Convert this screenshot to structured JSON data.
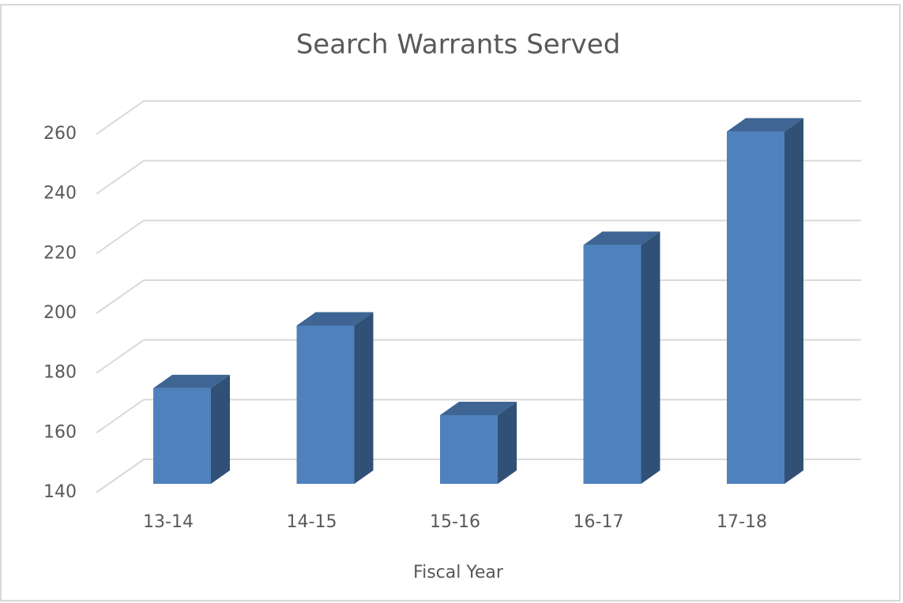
{
  "chart_data": {
    "type": "bar3d",
    "title": "Search Warrants Served",
    "x_label": "Fiscal Year",
    "categories": [
      "13-14",
      "14-15",
      "15-16",
      "16-17",
      "17-18"
    ],
    "values": [
      172,
      193,
      163,
      220,
      258
    ],
    "color": "#4f81bd",
    "ylim": [
      140,
      260
    ],
    "yticks": [
      140,
      160,
      180,
      200,
      220,
      240,
      260
    ],
    "grid": true
  }
}
